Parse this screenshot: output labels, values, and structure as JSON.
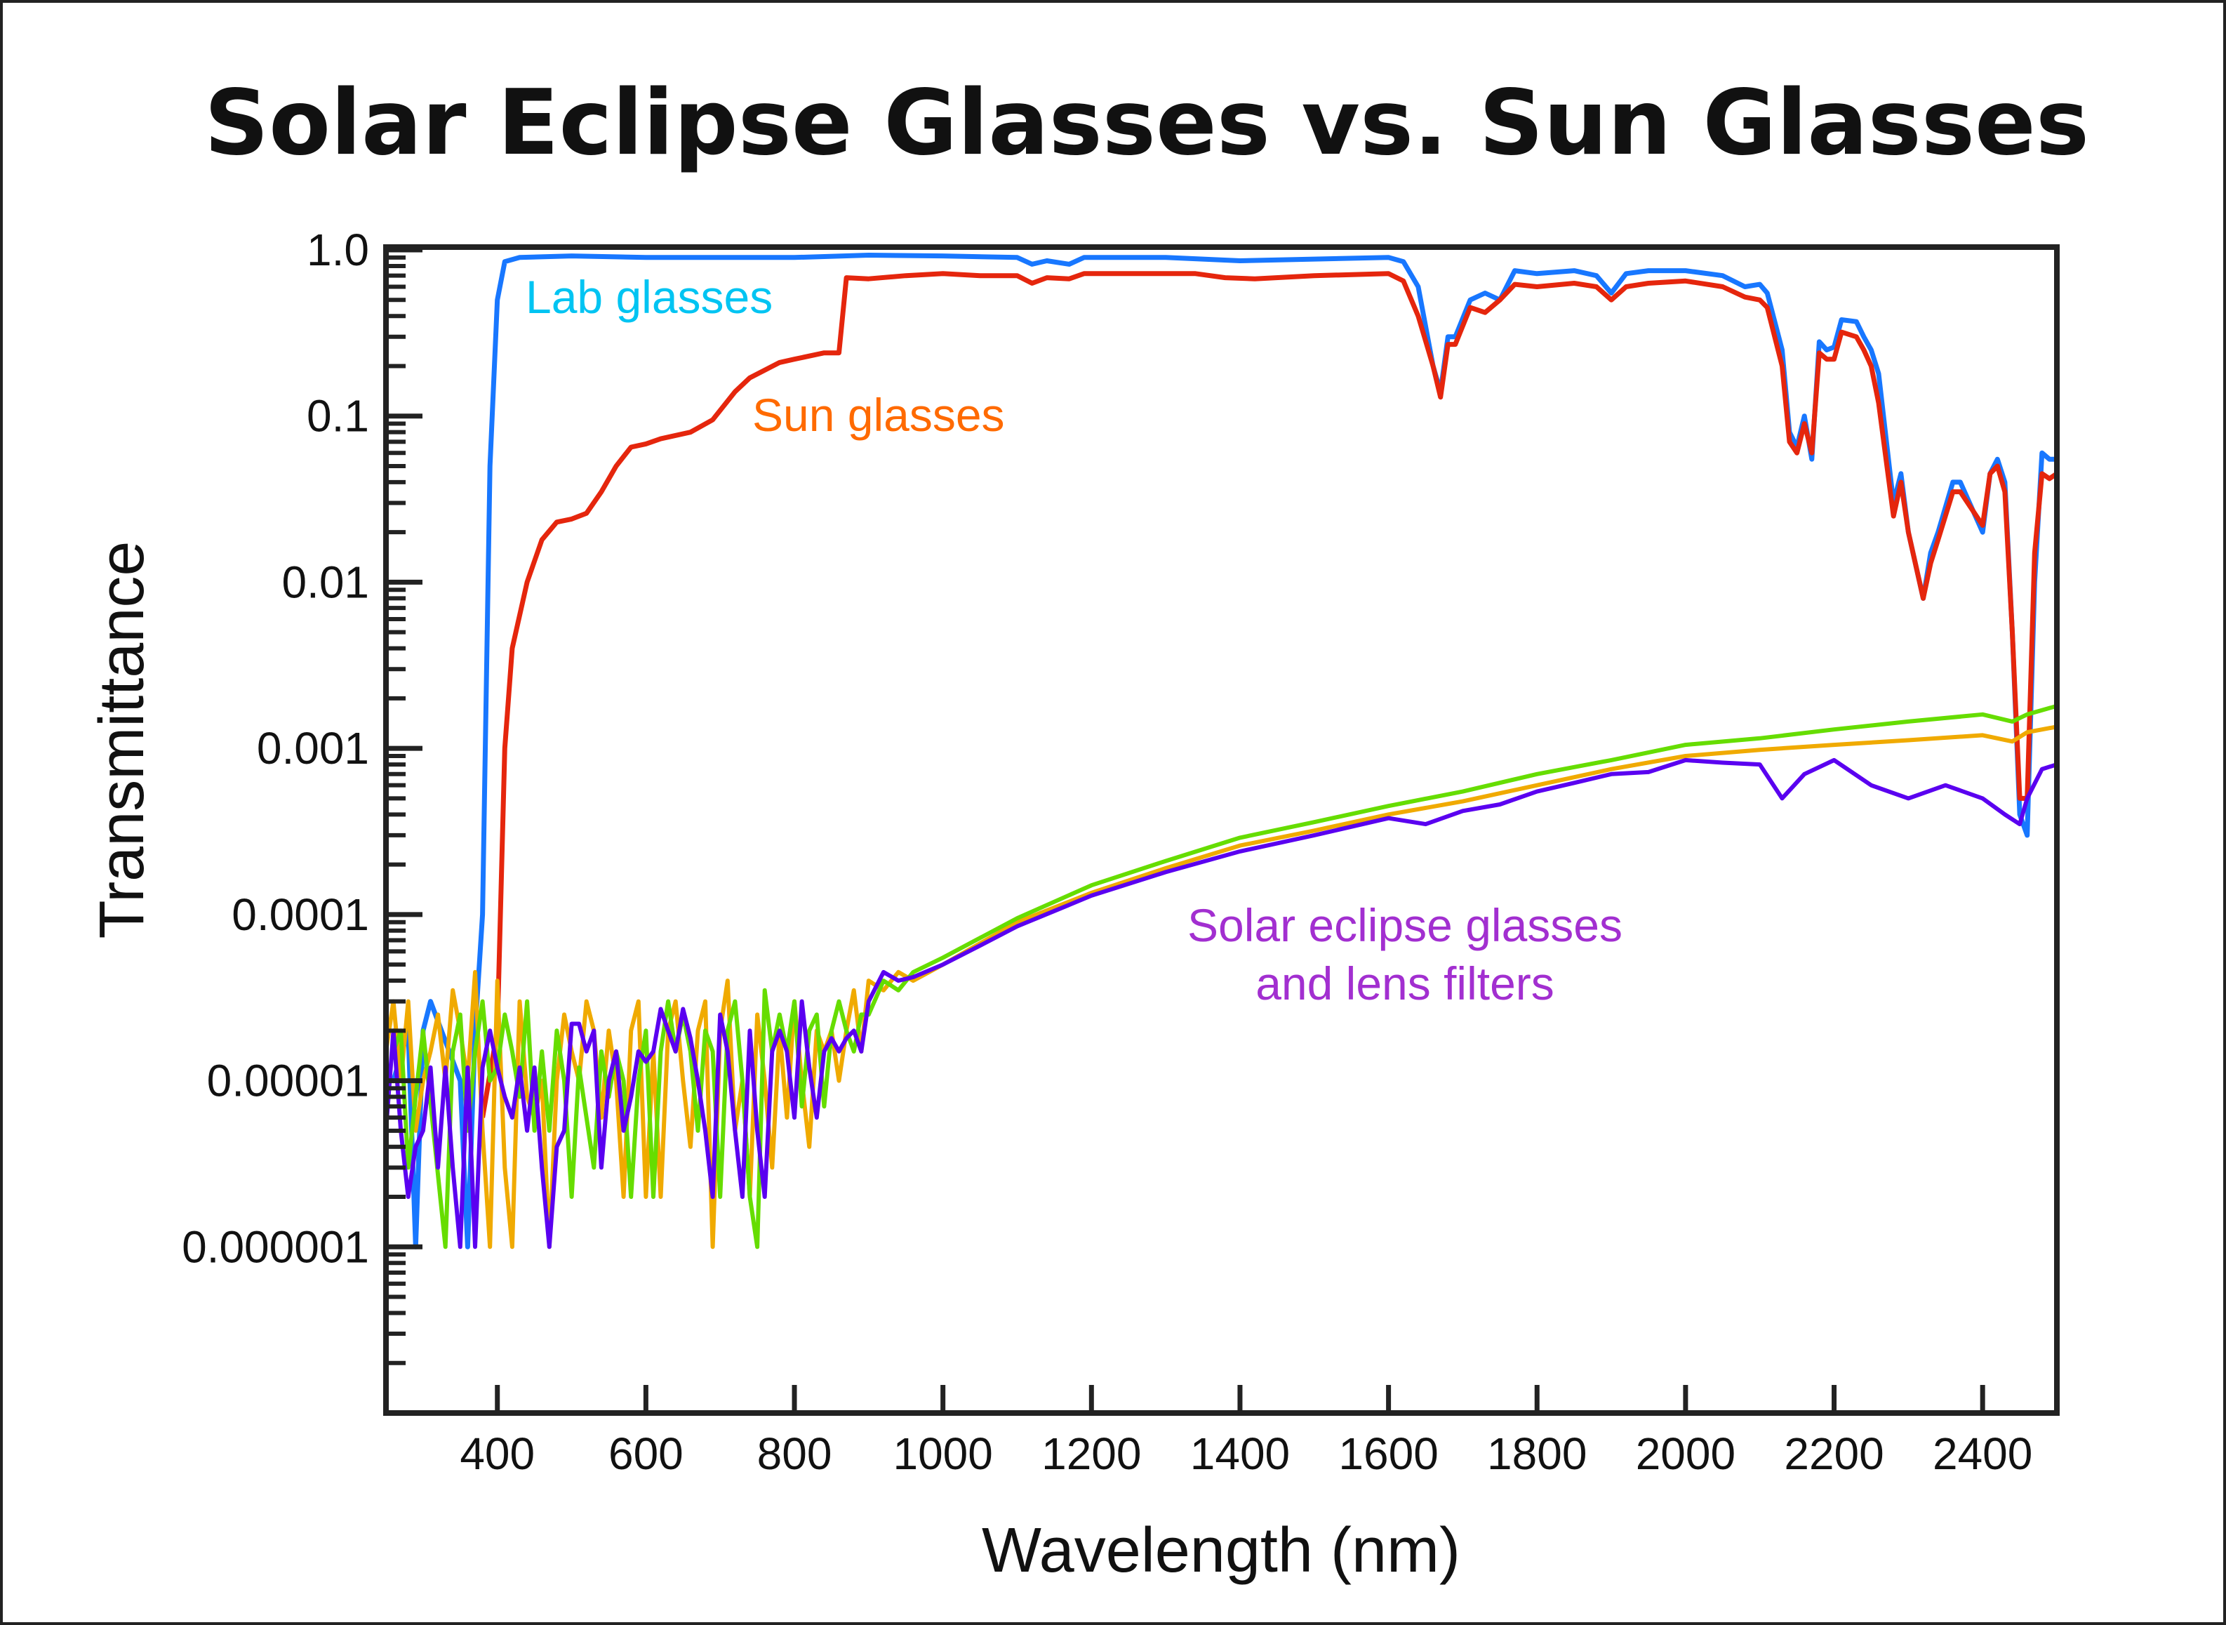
{
  "chart_data": {
    "type": "line",
    "title": "Solar Eclipse Glasses vs. Sun Glasses",
    "xlabel": "Wavelength (nm)",
    "ylabel": "Transmittance",
    "xlim": [
      250,
      2500
    ],
    "ylim": [
      1e-07,
      1
    ],
    "yscale": "log",
    "grid": false,
    "xticks": [
      400,
      600,
      800,
      1000,
      1200,
      1400,
      1600,
      1800,
      2000,
      2200,
      2400
    ],
    "xtick_labels": [
      "400",
      "600",
      "800",
      "1000",
      "1200",
      "1400",
      "1600",
      "1800",
      "2000",
      "2200",
      "2400"
    ],
    "yticks": [
      1,
      0.1,
      0.01,
      0.001,
      0.0001,
      1e-05,
      1e-06
    ],
    "ytick_labels": [
      "1.0",
      "0.1",
      "0.01",
      "0.001",
      "0.0001",
      "0.00001",
      "0.000001"
    ],
    "annotations": [
      {
        "text": "Lab glasses",
        "color": "#00c4f2",
        "series": "lab"
      },
      {
        "text": "Sun glasses",
        "color": "#ff6a00",
        "series": "sun"
      },
      {
        "text": "Solar eclipse glasses",
        "color": "#a22fd0",
        "series": "solar"
      },
      {
        "text": "and lens filters",
        "color": "#a22fd0",
        "series": "solar"
      }
    ],
    "series": [
      {
        "id": "lab",
        "color": "#1877ff",
        "x": [
          260,
          280,
          290,
          300,
          310,
          350,
          360,
          370,
          380,
          390,
          400,
          410,
          430,
          500,
          600,
          700,
          800,
          900,
          1000,
          1100,
          1120,
          1140,
          1170,
          1190,
          1300,
          1400,
          1500,
          1600,
          1620,
          1640,
          1660,
          1670,
          1680,
          1690,
          1710,
          1730,
          1750,
          1770,
          1800,
          1850,
          1880,
          1900,
          1920,
          1950,
          2000,
          2050,
          2080,
          2100,
          2110,
          2130,
          2140,
          2150,
          2160,
          2170,
          2180,
          2190,
          2200,
          2210,
          2230,
          2240,
          2250,
          2260,
          2280,
          2290,
          2300,
          2320,
          2330,
          2340,
          2360,
          2370,
          2400,
          2410,
          2420,
          2430,
          2440,
          2450,
          2460,
          2470,
          2480,
          2490,
          2500
        ],
        "y": [
          1e-05,
          2e-05,
          1e-06,
          2e-05,
          3e-05,
          1e-05,
          1e-06,
          2e-05,
          0.0001,
          0.05,
          0.5,
          0.85,
          0.9,
          0.92,
          0.9,
          0.9,
          0.9,
          0.93,
          0.92,
          0.9,
          0.82,
          0.86,
          0.82,
          0.9,
          0.9,
          0.86,
          0.88,
          0.9,
          0.85,
          0.6,
          0.2,
          0.14,
          0.3,
          0.3,
          0.5,
          0.55,
          0.5,
          0.75,
          0.72,
          0.75,
          0.7,
          0.55,
          0.72,
          0.75,
          0.75,
          0.7,
          0.6,
          0.62,
          0.55,
          0.25,
          0.08,
          0.065,
          0.1,
          0.055,
          0.28,
          0.25,
          0.26,
          0.38,
          0.37,
          0.3,
          0.25,
          0.18,
          0.03,
          0.045,
          0.02,
          0.008,
          0.015,
          0.02,
          0.04,
          0.04,
          0.02,
          0.045,
          0.055,
          0.04,
          0.005,
          0.0004,
          0.0003,
          0.01,
          0.06,
          0.055,
          0.055
        ]
      },
      {
        "id": "sun",
        "color": "#e5260d",
        "x": [
          380,
          400,
          410,
          420,
          440,
          460,
          480,
          500,
          520,
          540,
          560,
          580,
          600,
          620,
          660,
          690,
          720,
          740,
          780,
          800,
          840,
          860,
          870,
          900,
          950,
          1000,
          1050,
          1100,
          1120,
          1140,
          1170,
          1190,
          1300,
          1340,
          1380,
          1420,
          1500,
          1600,
          1620,
          1640,
          1660,
          1670,
          1680,
          1690,
          1710,
          1730,
          1750,
          1770,
          1800,
          1850,
          1880,
          1900,
          1920,
          1950,
          2000,
          2050,
          2080,
          2100,
          2110,
          2130,
          2140,
          2150,
          2160,
          2170,
          2180,
          2190,
          2200,
          2210,
          2230,
          2240,
          2250,
          2260,
          2280,
          2290,
          2300,
          2320,
          2330,
          2340,
          2360,
          2370,
          2400,
          2410,
          2420,
          2430,
          2440,
          2450,
          2460,
          2470,
          2480,
          2490,
          2500
        ],
        "y": [
          6e-06,
          2e-05,
          0.001,
          0.004,
          0.01,
          0.018,
          0.023,
          0.024,
          0.026,
          0.035,
          0.05,
          0.065,
          0.068,
          0.073,
          0.08,
          0.095,
          0.14,
          0.17,
          0.21,
          0.22,
          0.24,
          0.24,
          0.68,
          0.67,
          0.7,
          0.72,
          0.7,
          0.7,
          0.63,
          0.68,
          0.67,
          0.72,
          0.72,
          0.72,
          0.68,
          0.67,
          0.7,
          0.72,
          0.65,
          0.4,
          0.2,
          0.13,
          0.27,
          0.27,
          0.45,
          0.42,
          0.5,
          0.62,
          0.6,
          0.63,
          0.6,
          0.5,
          0.6,
          0.63,
          0.65,
          0.6,
          0.52,
          0.5,
          0.45,
          0.2,
          0.07,
          0.06,
          0.09,
          0.06,
          0.24,
          0.22,
          0.22,
          0.32,
          0.3,
          0.25,
          0.2,
          0.12,
          0.025,
          0.04,
          0.02,
          0.008,
          0.013,
          0.018,
          0.035,
          0.035,
          0.022,
          0.045,
          0.05,
          0.035,
          0.005,
          0.0005,
          0.0005,
          0.015,
          0.045,
          0.042,
          0.045
        ]
      },
      {
        "id": "solar-orange",
        "color": "#f0aa00",
        "x": [
          250,
          260,
          270,
          280,
          290,
          300,
          310,
          320,
          330,
          340,
          350,
          360,
          370,
          380,
          390,
          400,
          410,
          420,
          430,
          440,
          450,
          460,
          470,
          480,
          490,
          500,
          510,
          520,
          530,
          540,
          550,
          560,
          570,
          580,
          590,
          600,
          610,
          620,
          630,
          640,
          650,
          660,
          670,
          680,
          690,
          700,
          710,
          720,
          730,
          740,
          750,
          760,
          770,
          780,
          790,
          800,
          810,
          820,
          830,
          840,
          850,
          860,
          870,
          880,
          890,
          900,
          920,
          940,
          960,
          1000,
          1100,
          1200,
          1300,
          1400,
          1500,
          1600,
          1700,
          1800,
          1900,
          2000,
          2100,
          2200,
          2300,
          2400,
          2440,
          2460,
          2500
        ],
        "y": [
          1.5e-05,
          3e-05,
          1e-05,
          3e-05,
          5e-06,
          1e-05,
          1.5e-05,
          2.5e-05,
          1e-05,
          3.5e-05,
          2e-05,
          1e-05,
          4.5e-05,
          5e-06,
          1e-06,
          4e-05,
          3e-06,
          1e-06,
          3e-05,
          8e-06,
          6e-06,
          1e-05,
          1e-06,
          1e-05,
          2.5e-05,
          1.5e-05,
          1e-05,
          3e-05,
          2e-05,
          6e-06,
          2e-05,
          1e-05,
          2e-06,
          2e-05,
          3e-05,
          2e-06,
          1.5e-05,
          2e-06,
          2e-05,
          3e-05,
          1e-05,
          4e-06,
          2e-05,
          3e-05,
          1e-06,
          2e-05,
          4e-05,
          5e-06,
          1e-05,
          2e-06,
          2.5e-05,
          1e-05,
          3e-06,
          2e-05,
          6e-06,
          3e-05,
          1e-05,
          4e-06,
          2e-05,
          1.5e-05,
          2e-05,
          1e-05,
          2e-05,
          3.5e-05,
          1.5e-05,
          4e-05,
          3.5e-05,
          4.5e-05,
          4e-05,
          5e-05,
          9e-05,
          0.000135,
          0.00019,
          0.00026,
          0.00032,
          0.0004,
          0.00048,
          0.0006,
          0.00075,
          0.0009,
          0.00098,
          0.00105,
          0.00112,
          0.0012,
          0.0011,
          0.00125,
          0.00135
        ]
      },
      {
        "id": "solar-green",
        "color": "#66dd00",
        "x": [
          260,
          270,
          280,
          290,
          300,
          330,
          340,
          350,
          360,
          370,
          380,
          390,
          400,
          410,
          420,
          430,
          440,
          450,
          460,
          470,
          480,
          490,
          500,
          510,
          520,
          530,
          540,
          550,
          560,
          570,
          580,
          590,
          600,
          610,
          620,
          630,
          640,
          650,
          660,
          670,
          680,
          690,
          700,
          710,
          720,
          730,
          740,
          750,
          760,
          770,
          780,
          790,
          800,
          810,
          820,
          830,
          840,
          850,
          860,
          870,
          880,
          890,
          900,
          920,
          940,
          960,
          1000,
          1100,
          1200,
          1300,
          1400,
          1500,
          1600,
          1700,
          1800,
          1900,
          2000,
          2100,
          2200,
          2300,
          2400,
          2440,
          2460,
          2500
        ],
        "y": [
          1.5e-05,
          2e-05,
          3e-06,
          8e-06,
          2e-05,
          1e-06,
          1.5e-05,
          2.5e-05,
          5e-06,
          1.5e-05,
          3e-05,
          1e-05,
          1.2e-05,
          2.5e-05,
          1.5e-05,
          8e-06,
          3e-05,
          5e-06,
          1.5e-05,
          5e-06,
          2e-05,
          1e-05,
          2e-06,
          1.2e-05,
          6e-06,
          3e-06,
          1.5e-05,
          8e-06,
          1.5e-05,
          1e-05,
          2e-06,
          1e-05,
          2e-05,
          2e-06,
          1.5e-05,
          3e-05,
          1.5e-05,
          2.5e-05,
          1.5e-05,
          5e-06,
          2e-05,
          1.5e-05,
          2e-06,
          2e-05,
          3e-05,
          1e-05,
          2e-06,
          1e-06,
          3.5e-05,
          1.5e-05,
          2.5e-05,
          1.5e-05,
          3e-05,
          7e-06,
          2e-05,
          2.5e-05,
          7e-06,
          2e-05,
          3e-05,
          2e-05,
          1.5e-05,
          2.5e-05,
          2.5e-05,
          4e-05,
          3.5e-05,
          4.5e-05,
          5.5e-05,
          9.5e-05,
          0.00015,
          0.00021,
          0.00029,
          0.00036,
          0.00045,
          0.00055,
          0.0007,
          0.00085,
          0.00105,
          0.00115,
          0.0013,
          0.00145,
          0.0016,
          0.00145,
          0.0016,
          0.0018
        ]
      },
      {
        "id": "solar-purple",
        "color": "#5a00f0",
        "x": [
          250,
          260,
          270,
          280,
          290,
          300,
          310,
          320,
          330,
          340,
          350,
          360,
          370,
          380,
          390,
          400,
          410,
          420,
          430,
          440,
          450,
          460,
          470,
          480,
          490,
          500,
          510,
          520,
          530,
          540,
          550,
          560,
          570,
          580,
          590,
          600,
          610,
          620,
          630,
          640,
          650,
          660,
          670,
          680,
          690,
          700,
          710,
          720,
          730,
          740,
          750,
          760,
          770,
          780,
          790,
          800,
          810,
          820,
          830,
          840,
          850,
          860,
          870,
          880,
          890,
          900,
          920,
          940,
          960,
          1000,
          1050,
          1100,
          1150,
          1200,
          1300,
          1400,
          1500,
          1600,
          1650,
          1700,
          1750,
          1800,
          1850,
          1900,
          1950,
          2000,
          2050,
          2100,
          2130,
          2160,
          2200,
          2250,
          2300,
          2350,
          2400,
          2430,
          2450,
          2460,
          2480,
          2500
        ],
        "y": [
          5e-06,
          2e-05,
          5e-06,
          2e-06,
          4e-06,
          5e-06,
          1.2e-05,
          3e-06,
          1.2e-05,
          3e-06,
          1e-06,
          1.2e-05,
          1e-06,
          1.2e-05,
          2e-05,
          1.2e-05,
          8e-06,
          6e-06,
          1.2e-05,
          5e-06,
          1.2e-05,
          3e-06,
          1e-06,
          4e-06,
          5e-06,
          2.2e-05,
          2.2e-05,
          1.5e-05,
          2e-05,
          3e-06,
          1e-05,
          1.5e-05,
          5e-06,
          8e-06,
          1.5e-05,
          1.3e-05,
          1.5e-05,
          2.7e-05,
          2e-05,
          1.5e-05,
          2.7e-05,
          1.8e-05,
          1e-05,
          5e-06,
          2e-06,
          2.5e-05,
          1.5e-05,
          5e-06,
          2e-06,
          2e-05,
          5e-06,
          2e-06,
          1.5e-05,
          2e-05,
          1.5e-05,
          6e-06,
          3e-05,
          1.2e-05,
          6e-06,
          1.5e-05,
          1.8e-05,
          1.5e-05,
          1.8e-05,
          2e-05,
          1.5e-05,
          3e-05,
          4.5e-05,
          4e-05,
          4.2e-05,
          5e-05,
          6.5e-05,
          8.5e-05,
          0.000105,
          0.00013,
          0.00018,
          0.00024,
          0.0003,
          0.00038,
          0.00035,
          0.00042,
          0.00046,
          0.00055,
          0.00062,
          0.0007,
          0.00072,
          0.00085,
          0.00082,
          0.0008,
          0.0005,
          0.0007,
          0.00085,
          0.0006,
          0.0005,
          0.0006,
          0.0005,
          0.0004,
          0.00035,
          0.0005,
          0.00075,
          0.0008
        ]
      }
    ]
  }
}
